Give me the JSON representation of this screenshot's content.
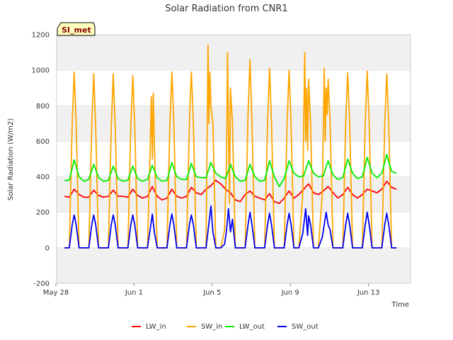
{
  "chart_data": {
    "type": "line",
    "title": "Solar Radiation from CNR1",
    "xlabel": "Time",
    "ylabel": "Solar Radiation (W/m2)",
    "badge": "SI_met",
    "xlim": [
      0,
      18
    ],
    "ylim": [
      -200,
      1200
    ],
    "x_ticks": [
      {
        "day": 0,
        "label": "May 28"
      },
      {
        "day": 4,
        "label": "Jun 1"
      },
      {
        "day": 8,
        "label": "Jun 5"
      },
      {
        "day": 12,
        "label": "Jun 9"
      },
      {
        "day": 16,
        "label": "Jun 13"
      }
    ],
    "y_ticks": [
      -200,
      0,
      200,
      400,
      600,
      800,
      1000,
      1200
    ],
    "grid": true,
    "legend_position": "bottom",
    "series": [
      {
        "name": "LW_in",
        "color": "#ff0000",
        "days": [
          0,
          0.25,
          0.5,
          0.75,
          1,
          1.25,
          1.5,
          1.75,
          2,
          2.25,
          2.5,
          2.75,
          3,
          3.25,
          3.5,
          3.75,
          4,
          4.25,
          4.5,
          4.75,
          5,
          5.25,
          5.5,
          5.75,
          6,
          6.25,
          6.5,
          6.75,
          7,
          7.25,
          7.5,
          7.75,
          8,
          8.25,
          8.5,
          8.75,
          9,
          9.25,
          9.5,
          9.75,
          10,
          10.25,
          10.5,
          10.75,
          11,
          11.25,
          11.5,
          11.75,
          12,
          12.25,
          12.5,
          12.75,
          13,
          13.25,
          13.5,
          13.75,
          14,
          14.25,
          14.5,
          14.75,
          15,
          15.25,
          15.5,
          15.75,
          16,
          16.25,
          16.5,
          16.75,
          17
        ],
        "values": [
          290,
          285,
          330,
          300,
          285,
          285,
          325,
          295,
          285,
          290,
          325,
          290,
          290,
          285,
          330,
          295,
          280,
          290,
          345,
          290,
          270,
          280,
          330,
          290,
          280,
          290,
          340,
          310,
          300,
          330,
          350,
          380,
          360,
          330,
          310,
          270,
          260,
          300,
          320,
          290,
          280,
          270,
          305,
          260,
          250,
          280,
          320,
          280,
          300,
          330,
          360,
          310,
          300,
          320,
          345,
          310,
          280,
          300,
          340,
          300,
          280,
          300,
          330,
          320,
          310,
          330,
          375,
          340,
          330
        ]
      },
      {
        "name": "SW_in",
        "color": "#ffa500",
        "days": [
          0,
          0.25,
          0.4,
          0.5,
          0.6,
          0.75,
          1,
          1.25,
          1.4,
          1.5,
          1.6,
          1.75,
          2,
          2.25,
          2.4,
          2.5,
          2.6,
          2.75,
          3,
          3.25,
          3.4,
          3.5,
          3.6,
          3.75,
          4,
          4.25,
          4.4,
          4.45,
          4.5,
          4.55,
          4.6,
          4.75,
          5,
          5.25,
          5.4,
          5.5,
          5.6,
          5.75,
          6,
          6.25,
          6.4,
          6.45,
          6.5,
          6.6,
          6.75,
          7,
          7.25,
          7.35,
          7.4,
          7.45,
          7.5,
          7.6,
          7.75,
          8,
          8.2,
          8.3,
          8.35,
          8.45,
          8.5,
          8.6,
          8.75,
          9,
          9.25,
          9.4,
          9.5,
          9.6,
          9.75,
          10,
          10.25,
          10.4,
          10.5,
          10.6,
          10.75,
          11,
          11.25,
          11.4,
          11.5,
          11.6,
          11.75,
          12,
          12.2,
          12.3,
          12.35,
          12.4,
          12.45,
          12.5,
          12.6,
          12.75,
          13,
          13.2,
          13.3,
          13.35,
          13.4,
          13.45,
          13.5,
          13.6,
          13.75,
          14,
          14.25,
          14.4,
          14.5,
          14.6,
          14.75,
          15,
          15.25,
          15.4,
          15.5,
          15.6,
          15.75,
          16,
          16.25,
          16.4,
          16.5,
          16.6,
          16.75,
          17
        ],
        "values": [
          0,
          0,
          700,
          990,
          700,
          0,
          0,
          0,
          680,
          980,
          680,
          0,
          0,
          0,
          680,
          980,
          680,
          0,
          0,
          0,
          680,
          970,
          680,
          0,
          0,
          0,
          600,
          850,
          500,
          870,
          600,
          0,
          0,
          0,
          700,
          990,
          700,
          0,
          0,
          0,
          700,
          870,
          990,
          700,
          0,
          0,
          0,
          1140,
          700,
          990,
          800,
          700,
          0,
          0,
          100,
          500,
          1100,
          250,
          900,
          700,
          0,
          0,
          0,
          750,
          1060,
          700,
          0,
          0,
          0,
          700,
          1010,
          700,
          0,
          0,
          0,
          700,
          1000,
          700,
          0,
          0,
          300,
          1100,
          600,
          900,
          550,
          950,
          700,
          0,
          0,
          300,
          1010,
          600,
          900,
          750,
          950,
          700,
          0,
          0,
          0,
          700,
          985,
          700,
          0,
          0,
          0,
          700,
          995,
          700,
          0,
          0,
          0,
          700,
          980,
          700,
          0,
          0
        ]
      },
      {
        "name": "LW_out",
        "color": "#00ee00",
        "days": [
          0,
          0.25,
          0.5,
          0.75,
          1,
          1.25,
          1.5,
          1.75,
          2,
          2.25,
          2.5,
          2.75,
          3,
          3.25,
          3.5,
          3.75,
          4,
          4.25,
          4.5,
          4.75,
          5,
          5.25,
          5.5,
          5.75,
          6,
          6.25,
          6.5,
          6.75,
          7,
          7.25,
          7.5,
          7.75,
          8,
          8.25,
          8.5,
          8.75,
          9,
          9.25,
          9.5,
          9.75,
          10,
          10.25,
          10.5,
          10.75,
          11,
          11.25,
          11.5,
          11.75,
          12,
          12.25,
          12.5,
          12.75,
          13,
          13.25,
          13.5,
          13.75,
          14,
          14.25,
          14.5,
          14.75,
          15,
          15.25,
          15.5,
          15.75,
          16,
          16.25,
          16.5,
          16.75,
          17
        ],
        "values": [
          380,
          380,
          495,
          400,
          375,
          385,
          470,
          395,
          375,
          380,
          460,
          390,
          375,
          380,
          460,
          390,
          375,
          385,
          465,
          395,
          375,
          380,
          480,
          400,
          385,
          385,
          475,
          400,
          395,
          395,
          480,
          420,
          400,
          390,
          470,
          400,
          375,
          380,
          470,
          400,
          375,
          380,
          490,
          400,
          345,
          390,
          490,
          420,
          400,
          405,
          490,
          420,
          400,
          405,
          490,
          410,
          385,
          395,
          500,
          420,
          390,
          400,
          510,
          420,
          395,
          420,
          525,
          430,
          420
        ]
      },
      {
        "name": "SW_out",
        "color": "#0000ee",
        "days": [
          0,
          0.25,
          0.4,
          0.5,
          0.6,
          0.75,
          1,
          1.25,
          1.4,
          1.5,
          1.6,
          1.75,
          2,
          2.25,
          2.4,
          2.5,
          2.6,
          2.75,
          3,
          3.25,
          3.4,
          3.5,
          3.6,
          3.75,
          4,
          4.25,
          4.4,
          4.5,
          4.6,
          4.75,
          5,
          5.25,
          5.4,
          5.5,
          5.6,
          5.75,
          6,
          6.25,
          6.4,
          6.5,
          6.6,
          6.75,
          7,
          7.25,
          7.4,
          7.5,
          7.6,
          7.75,
          8,
          8.2,
          8.3,
          8.4,
          8.5,
          8.6,
          8.75,
          9,
          9.25,
          9.4,
          9.5,
          9.6,
          9.75,
          10,
          10.25,
          10.4,
          10.5,
          10.6,
          10.75,
          11,
          11.25,
          11.4,
          11.5,
          11.6,
          11.75,
          12,
          12.2,
          12.35,
          12.45,
          12.5,
          12.6,
          12.75,
          13,
          13.2,
          13.4,
          13.5,
          13.6,
          13.75,
          14,
          14.25,
          14.4,
          14.5,
          14.6,
          14.75,
          15,
          15.25,
          15.4,
          15.5,
          15.6,
          15.75,
          16,
          16.25,
          16.4,
          16.5,
          16.6,
          16.75,
          17
        ],
        "values": [
          0,
          0,
          130,
          185,
          130,
          0,
          0,
          0,
          130,
          185,
          130,
          0,
          0,
          0,
          130,
          185,
          130,
          0,
          0,
          0,
          130,
          185,
          130,
          0,
          0,
          0,
          110,
          190,
          90,
          0,
          0,
          0,
          130,
          190,
          130,
          0,
          0,
          0,
          130,
          185,
          130,
          0,
          0,
          0,
          140,
          235,
          90,
          0,
          0,
          20,
          100,
          220,
          90,
          160,
          0,
          0,
          0,
          130,
          200,
          130,
          0,
          0,
          0,
          130,
          195,
          130,
          0,
          0,
          0,
          130,
          195,
          130,
          0,
          0,
          80,
          220,
          70,
          180,
          130,
          0,
          0,
          60,
          200,
          130,
          100,
          0,
          0,
          0,
          130,
          195,
          130,
          0,
          0,
          0,
          130,
          200,
          130,
          0,
          0,
          0,
          130,
          195,
          130,
          0,
          0
        ]
      }
    ]
  },
  "colors": {
    "band": "#f0f0f0",
    "grid": "#dddddd",
    "axis": "#cccccc",
    "badge_fill": "#ffffc0"
  }
}
